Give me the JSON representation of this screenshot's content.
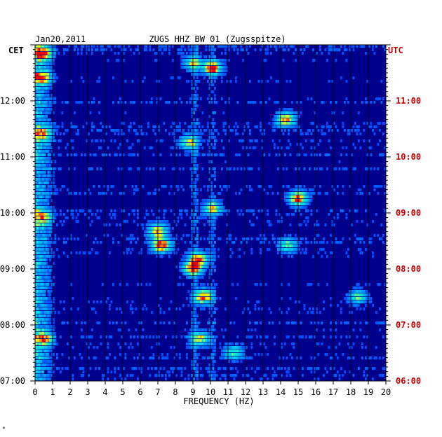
{
  "chart_data": {
    "type": "heatmap",
    "date_label": "Jan20,2011",
    "title": "ZUGS HHZ BW 01 (Zugsspitze)",
    "left_zone_label": "CET",
    "right_zone_label": "UTC",
    "xlabel": "FREQUENCY (HZ)",
    "xlim": [
      0,
      20
    ],
    "x_ticks": [
      "0",
      "1",
      "2",
      "3",
      "4",
      "5",
      "6",
      "7",
      "8",
      "9",
      "10",
      "11",
      "12",
      "13",
      "14",
      "15",
      "16",
      "17",
      "18",
      "19",
      "20"
    ],
    "y_ticks_left": [
      "07:00",
      "08:00",
      "09:00",
      "10:00",
      "11:00",
      "12:00"
    ],
    "y_ticks_right": [
      "06:00",
      "07:00",
      "08:00",
      "09:00",
      "10:00",
      "11:00"
    ],
    "time_range_cet": [
      "07:00",
      "13:00"
    ],
    "colormap": [
      "#00008c",
      "#0000ff",
      "#0096ff",
      "#00e6e6",
      "#ffff00",
      "#ff0000"
    ],
    "hotspots": [
      {
        "freq": 0.4,
        "time": "12:50",
        "intensity": 0.85
      },
      {
        "freq": 0.4,
        "time": "12:25",
        "intensity": 0.7
      },
      {
        "freq": 0.4,
        "time": "11:25",
        "intensity": 0.6
      },
      {
        "freq": 0.5,
        "time": "07:45",
        "intensity": 0.7
      },
      {
        "freq": 0.4,
        "time": "09:55",
        "intensity": 0.6
      },
      {
        "freq": 10.1,
        "time": "12:35",
        "intensity": 0.9
      },
      {
        "freq": 9.0,
        "time": "12:40",
        "intensity": 0.6
      },
      {
        "freq": 10.1,
        "time": "10:05",
        "intensity": 0.6
      },
      {
        "freq": 14.3,
        "time": "11:40",
        "intensity": 0.8
      },
      {
        "freq": 15.0,
        "time": "10:15",
        "intensity": 0.9
      },
      {
        "freq": 7.2,
        "time": "09:25",
        "intensity": 0.9
      },
      {
        "freq": 7.0,
        "time": "09:40",
        "intensity": 0.75
      },
      {
        "freq": 9.0,
        "time": "09:00",
        "intensity": 0.9
      },
      {
        "freq": 9.3,
        "time": "09:10",
        "intensity": 0.8
      },
      {
        "freq": 9.6,
        "time": "08:30",
        "intensity": 0.85
      },
      {
        "freq": 8.8,
        "time": "11:15",
        "intensity": 0.6
      },
      {
        "freq": 9.4,
        "time": "07:45",
        "intensity": 0.6
      },
      {
        "freq": 11.3,
        "time": "07:30",
        "intensity": 0.5
      },
      {
        "freq": 18.4,
        "time": "08:30",
        "intensity": 0.5
      },
      {
        "freq": 14.4,
        "time": "09:25",
        "intensity": 0.5
      }
    ]
  }
}
